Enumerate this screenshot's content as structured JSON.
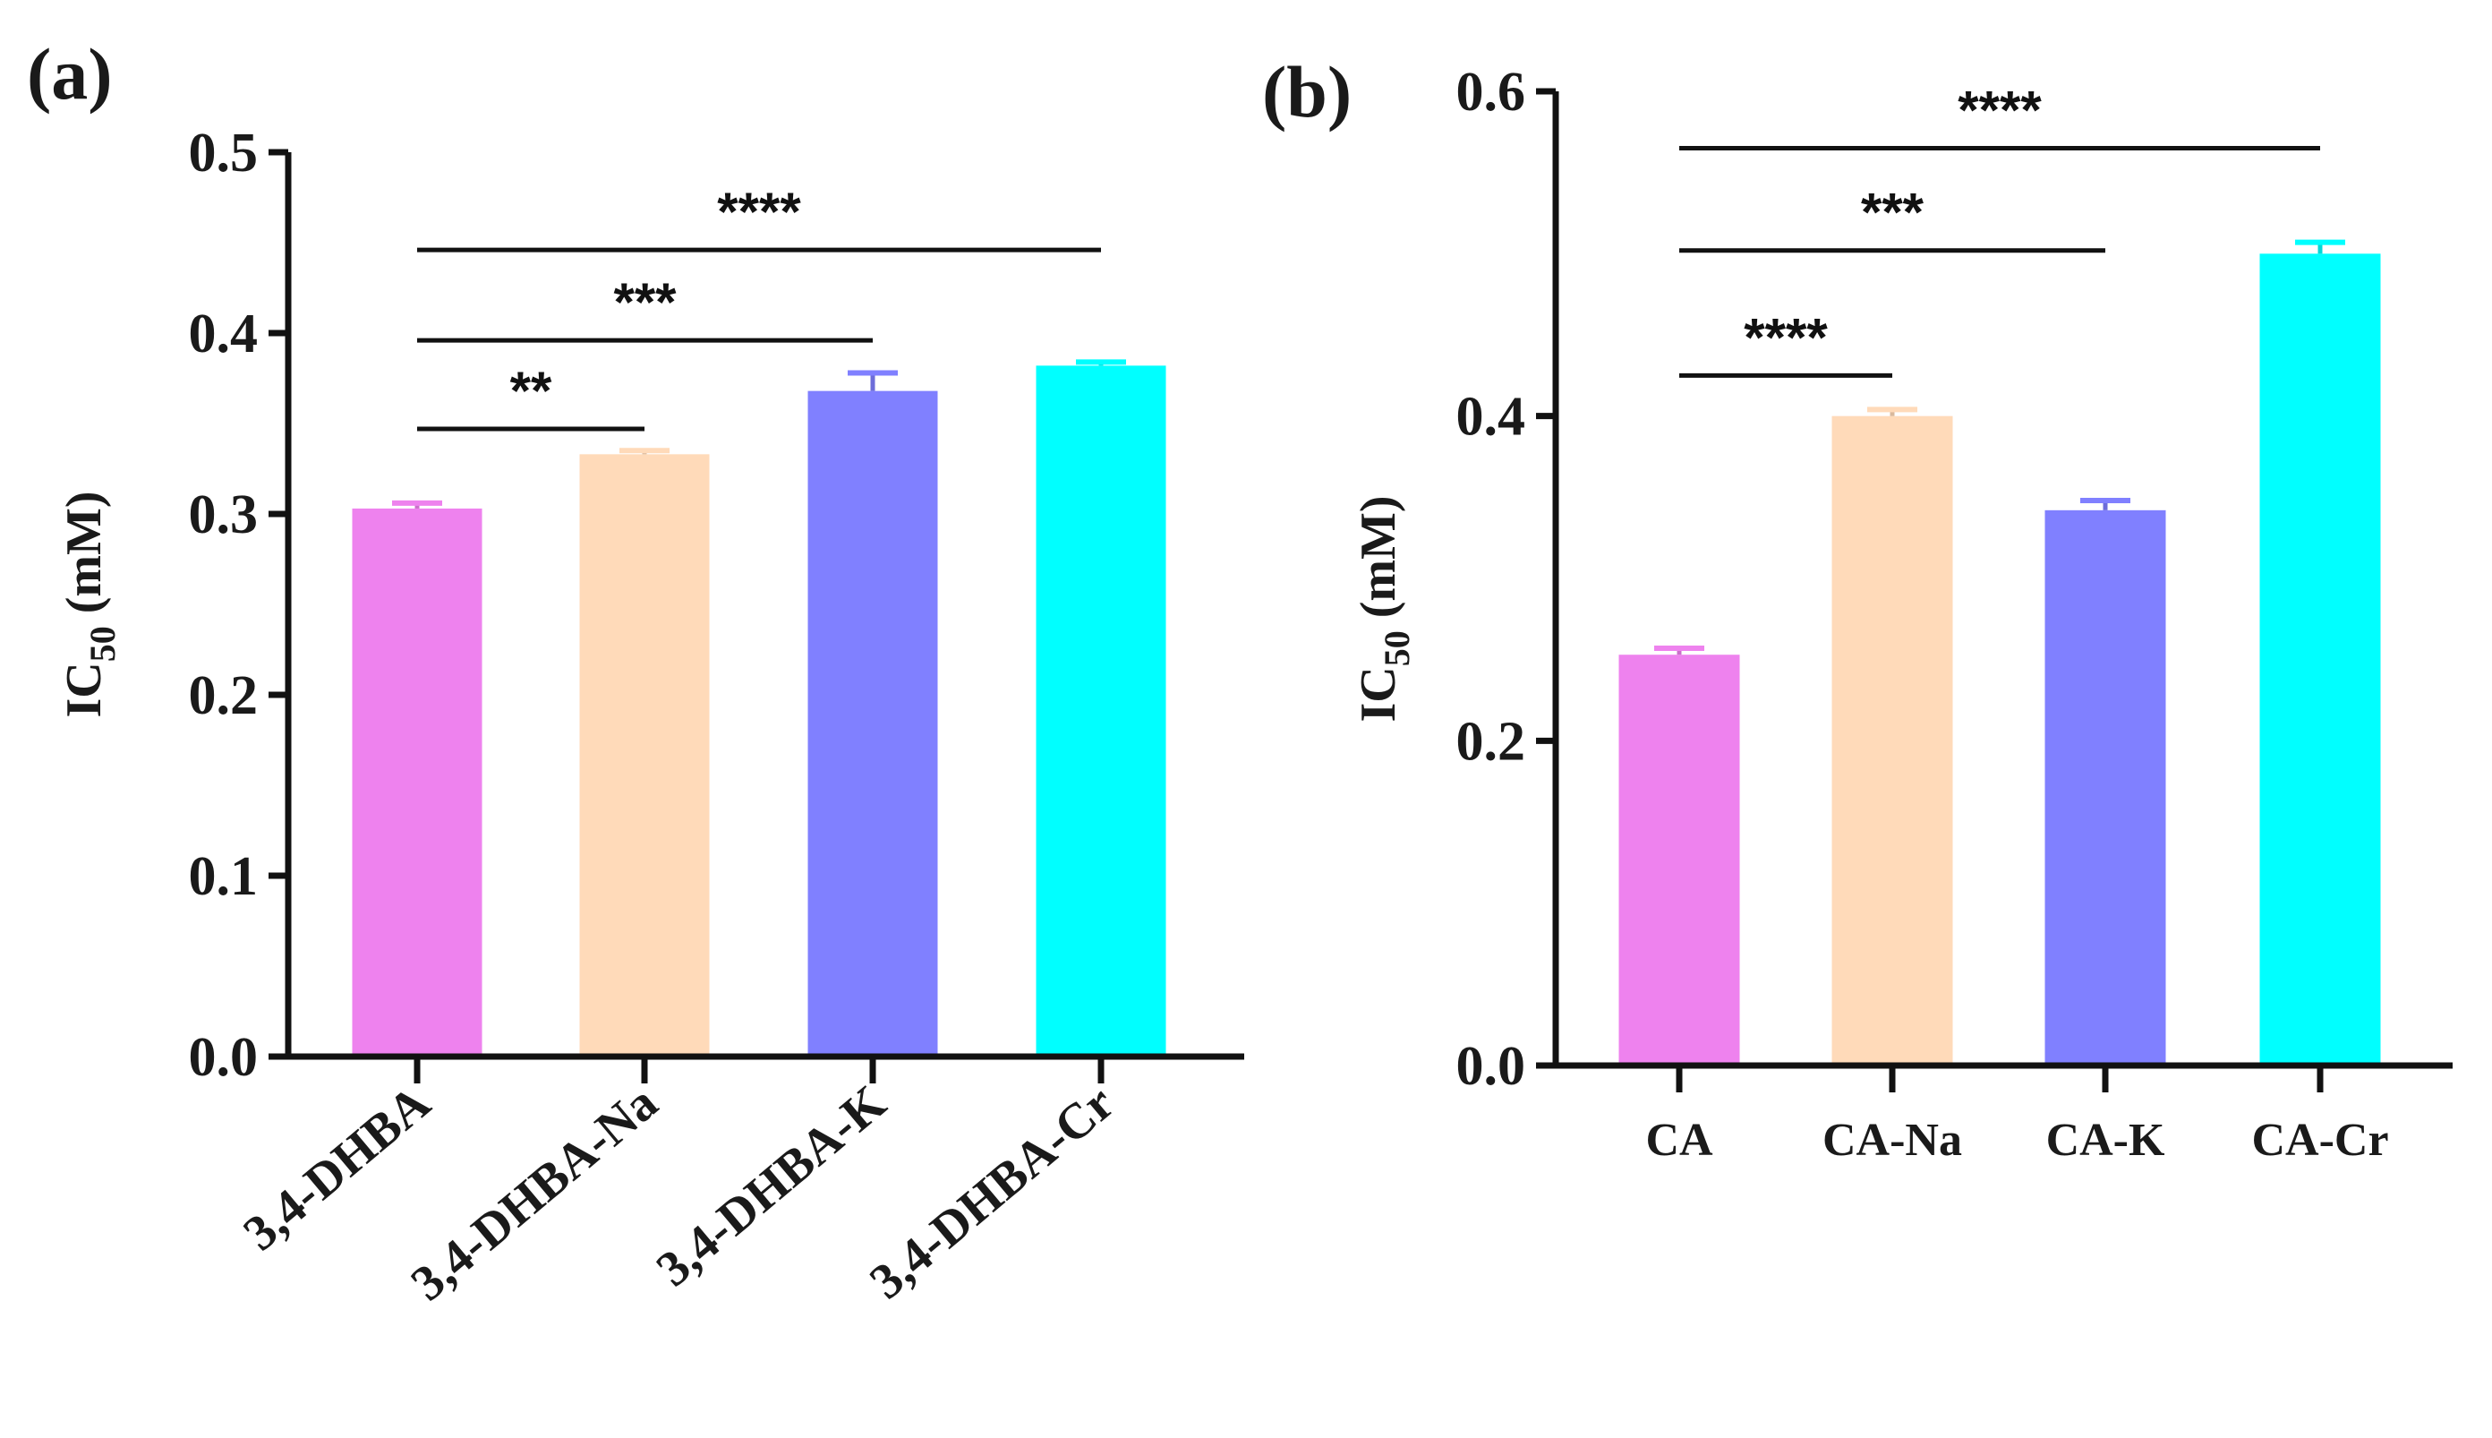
{
  "chart_data": [
    {
      "panel": "(a)",
      "type": "bar",
      "ylabel_main": "IC",
      "ylabel_sub": "50",
      "ylabel_unit": " (mM)",
      "ylim": [
        0,
        0.5
      ],
      "yticks": [
        "0.0",
        "0.1",
        "0.2",
        "0.3",
        "0.4",
        "0.5"
      ],
      "categories": [
        "3,4-DHBA",
        "3,4-DHBA-Na",
        "3,4-DHBA-K",
        "3,4-DHBA-Cr"
      ],
      "values": [
        0.303,
        0.333,
        0.368,
        0.382
      ],
      "errors": [
        0.003,
        0.002,
        0.01,
        0.002
      ],
      "colors": [
        "#ee82ee",
        "#ffdab9",
        "#8080ff",
        "#00ffff"
      ],
      "significance": [
        {
          "from": 0,
          "to": 1,
          "label": "**",
          "y": 0.347
        },
        {
          "from": 0,
          "to": 2,
          "label": "***",
          "y": 0.396
        },
        {
          "from": 0,
          "to": 3,
          "label": "****",
          "y": 0.446
        }
      ]
    },
    {
      "panel": "(b)",
      "type": "bar",
      "ylabel_main": "IC",
      "ylabel_sub": "50",
      "ylabel_unit": " (mM)",
      "ylim": [
        0,
        0.6
      ],
      "yticks": [
        "0.0",
        "0.2",
        "0.4",
        "0.6"
      ],
      "categories": [
        "CA",
        "CA-Na",
        "CA-K",
        "CA-Cr"
      ],
      "values": [
        0.253,
        0.4,
        0.342,
        0.5
      ],
      "errors": [
        0.004,
        0.004,
        0.006,
        0.007
      ],
      "colors": [
        "#ee82ee",
        "#ffdab9",
        "#8080ff",
        "#00ffff"
      ],
      "significance": [
        {
          "from": 0,
          "to": 1,
          "label": "****",
          "y": 0.425
        },
        {
          "from": 0,
          "to": 2,
          "label": "***",
          "y": 0.502
        },
        {
          "from": 0,
          "to": 3,
          "label": "****",
          "y": 0.565
        }
      ]
    }
  ]
}
